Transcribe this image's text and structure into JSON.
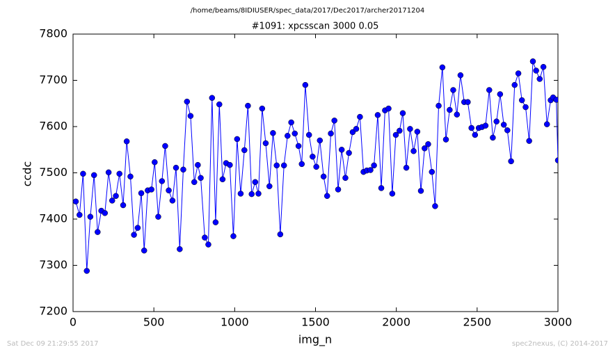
{
  "chart_data": {
    "type": "line",
    "suptitle": "/home/beams/8IDIUSER/spec_data/2017/Dec2017/archer20171204",
    "title": "#1091: xpcsscan 3000 0.05",
    "x_label": "img_n",
    "y_label": "ccdc",
    "footer_left": "Sat Dec 09 21:29:55 2017",
    "footer_right": "spec2nexus, (C) 2014-2017",
    "xlim": [
      0,
      3000
    ],
    "xticks": [
      0,
      500,
      1000,
      1500,
      2000,
      2500,
      3000
    ],
    "ylim": [
      7200,
      7800
    ],
    "yticks": [
      7200,
      7300,
      7400,
      7500,
      7600,
      7700,
      7800
    ],
    "x": [
      17,
      40,
      62,
      85,
      107,
      130,
      152,
      175,
      197,
      220,
      242,
      265,
      287,
      310,
      332,
      355,
      377,
      400,
      422,
      440,
      462,
      485,
      505,
      527,
      550,
      570,
      592,
      615,
      637,
      660,
      682,
      705,
      727,
      750,
      772,
      790,
      815,
      837,
      860,
      882,
      905,
      925,
      947,
      970,
      992,
      1015,
      1037,
      1060,
      1082,
      1105,
      1127,
      1147,
      1170,
      1192,
      1215,
      1237,
      1260,
      1282,
      1305,
      1327,
      1350,
      1372,
      1395,
      1415,
      1437,
      1460,
      1482,
      1505,
      1527,
      1550,
      1572,
      1595,
      1617,
      1640,
      1662,
      1685,
      1707,
      1730,
      1752,
      1775,
      1797,
      1817,
      1840,
      1862,
      1885,
      1907,
      1930,
      1952,
      1975,
      1997,
      2020,
      2040,
      2062,
      2085,
      2107,
      2130,
      2152,
      2175,
      2197,
      2220,
      2240,
      2262,
      2285,
      2307,
      2330,
      2352,
      2375,
      2397,
      2420,
      2442,
      2465,
      2487,
      2510,
      2530,
      2552,
      2575,
      2597,
      2620,
      2642,
      2665,
      2687,
      2710,
      2732,
      2755,
      2777,
      2800,
      2822,
      2845,
      2865,
      2887,
      2910,
      2932,
      2955,
      2970,
      2990,
      3000
    ],
    "series": [
      {
        "color": "#0000ff",
        "values": [
          7438,
          7409,
          7498,
          7288,
          7405,
          7495,
          7372,
          7418,
          7413,
          7501,
          7440,
          7450,
          7498,
          7430,
          7568,
          7492,
          7366,
          7381,
          7456,
          7332,
          7462,
          7464,
          7523,
          7405,
          7482,
          7558,
          7462,
          7440,
          7511,
          7335,
          7507,
          7654,
          7623,
          7480,
          7517,
          7489,
          7360,
          7345,
          7662,
          7393,
          7648,
          7486,
          7521,
          7517,
          7363,
          7573,
          7455,
          7549,
          7645,
          7454,
          7480,
          7455,
          7639,
          7564,
          7471,
          7586,
          7516,
          7367,
          7516,
          7580,
          7609,
          7585,
          7558,
          7519,
          7690,
          7582,
          7535,
          7513,
          7570,
          7492,
          7450,
          7585,
          7613,
          7464,
          7550,
          7489,
          7543,
          7588,
          7595,
          7621,
          7502,
          7505,
          7506,
          7516,
          7625,
          7467,
          7635,
          7639,
          7455,
          7582,
          7591,
          7629,
          7511,
          7595,
          7547,
          7589,
          7461,
          7553,
          7562,
          7502,
          7428,
          7645,
          7728,
          7572,
          7636,
          7679,
          7626,
          7711,
          7653,
          7653,
          7597,
          7582,
          7597,
          7599,
          7602,
          7679,
          7576,
          7611,
          7670,
          7604,
          7592,
          7525,
          7690,
          7715,
          7657,
          7642,
          7569,
          7741,
          7721,
          7703,
          7729,
          7605,
          7657,
          7663,
          7658,
          7527
        ]
      }
    ]
  }
}
